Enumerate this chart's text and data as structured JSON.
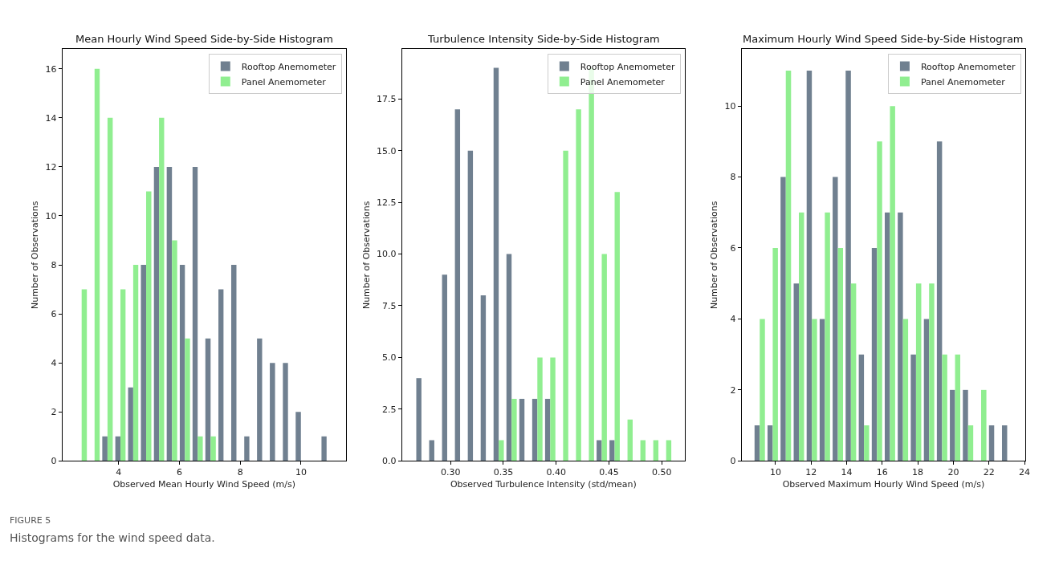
{
  "chart_data": [
    {
      "type": "histogram",
      "title": "Mean Hourly Wind Speed Side-by-Side Histogram",
      "xlabel": "Observed Mean Hourly Wind Speed (m/s)",
      "ylabel": "Number of Observations",
      "legend": "top right",
      "bins": [
        2.57,
        3.0,
        3.42,
        3.85,
        4.27,
        4.69,
        5.12,
        5.54,
        5.97,
        6.39,
        6.81,
        7.24,
        7.66,
        8.09,
        8.51,
        8.93,
        9.36,
        9.78,
        10.21,
        10.63,
        11.05
      ],
      "series": [
        {
          "name": "Rooftop Anemometer",
          "color": "#708090",
          "values": [
            0,
            0,
            1,
            1,
            3,
            8,
            12,
            12,
            8,
            12,
            5,
            7,
            8,
            1,
            5,
            4,
            4,
            2,
            0,
            1
          ]
        },
        {
          "name": "Panel Anemometer",
          "color": "#90ee90",
          "values": [
            7,
            16,
            14,
            7,
            8,
            11,
            14,
            9,
            5,
            1,
            1,
            0,
            0,
            0,
            0,
            0,
            0,
            0,
            0,
            0
          ]
        }
      ],
      "xlim": [
        2.15,
        11.48
      ],
      "xticks": [
        4,
        6,
        8,
        10
      ],
      "ylim": [
        0,
        16.8
      ],
      "yticks": [
        0,
        2,
        4,
        6,
        8,
        10,
        12,
        14,
        16
      ],
      "annotations": [
        "FIGURE 5",
        "Histograms for the wind speed data."
      ]
    },
    {
      "type": "histogram",
      "title": "Turbulence Intensity Side-by-Side Histogram",
      "xlabel": "Observed Turbulence Intensity (std/mean)",
      "ylabel": "Number of Observations",
      "legend": "top right",
      "bins": [
        0.2663,
        0.2785,
        0.2907,
        0.3029,
        0.3151,
        0.3273,
        0.3395,
        0.3517,
        0.3639,
        0.3761,
        0.3883,
        0.4005,
        0.4127,
        0.4249,
        0.4371,
        0.4493,
        0.4615,
        0.4737,
        0.4859,
        0.4981,
        0.5103
      ],
      "series": [
        {
          "name": "Rooftop Anemometer",
          "color": "#708090",
          "values": [
            4,
            1,
            9,
            17,
            15,
            8,
            19,
            10,
            3,
            3,
            3,
            0,
            0,
            0,
            1,
            1,
            0,
            0,
            0,
            0
          ]
        },
        {
          "name": "Panel Anemometer",
          "color": "#90ee90",
          "values": [
            0,
            0,
            0,
            0,
            0,
            0,
            1,
            3,
            0,
            5,
            5,
            15,
            17,
            19,
            10,
            13,
            2,
            1,
            1,
            1
          ]
        }
      ],
      "xlim": [
        0.254,
        0.522
      ],
      "xticks": [
        {
          "value": 0.3,
          "label": "0.30"
        },
        {
          "value": 0.35,
          "label": "0.35"
        },
        {
          "value": 0.4,
          "label": "0.40"
        },
        {
          "value": 0.45,
          "label": "0.45"
        },
        {
          "value": 0.5,
          "label": "0.50"
        }
      ],
      "ylim": [
        0,
        19.9
      ],
      "yticks": [
        {
          "value": 0,
          "label": "0.0"
        },
        2.5,
        {
          "value": 5,
          "label": "5.0"
        },
        7.5,
        {
          "value": 10,
          "label": "10.0"
        },
        12.5,
        {
          "value": 15,
          "label": "15.0"
        },
        17.5
      ]
    },
    {
      "type": "histogram",
      "title": "Maximum Hourly Wind Speed Side-by-Side Histogram",
      "xlabel": "Observed Maximum Hourly Wind Speed (m/s)",
      "ylabel": "Number of Observations",
      "legend": "top right",
      "bins": [
        8.75,
        9.48,
        10.21,
        10.95,
        11.68,
        12.41,
        13.14,
        13.87,
        14.61,
        15.34,
        16.07,
        16.8,
        17.53,
        18.27,
        19.0,
        19.73,
        20.46,
        21.19,
        21.93,
        22.66,
        23.39
      ],
      "series": [
        {
          "name": "Rooftop Anemometer",
          "color": "#708090",
          "values": [
            1,
            1,
            8,
            5,
            11,
            4,
            8,
            11,
            3,
            6,
            7,
            7,
            3,
            4,
            9,
            2,
            2,
            0,
            1,
            1
          ]
        },
        {
          "name": "Panel Anemometer",
          "color": "#90ee90",
          "values": [
            4,
            6,
            11,
            7,
            4,
            7,
            6,
            5,
            1,
            9,
            10,
            4,
            5,
            5,
            3,
            3,
            1,
            2,
            0,
            0
          ]
        }
      ],
      "xlim": [
        8.1,
        24.05
      ],
      "xticks": [
        10,
        12,
        14,
        16,
        18,
        20,
        22,
        24
      ],
      "ylim": [
        0,
        11.6
      ],
      "yticks": [
        0,
        2,
        4,
        6,
        8,
        10
      ]
    }
  ]
}
